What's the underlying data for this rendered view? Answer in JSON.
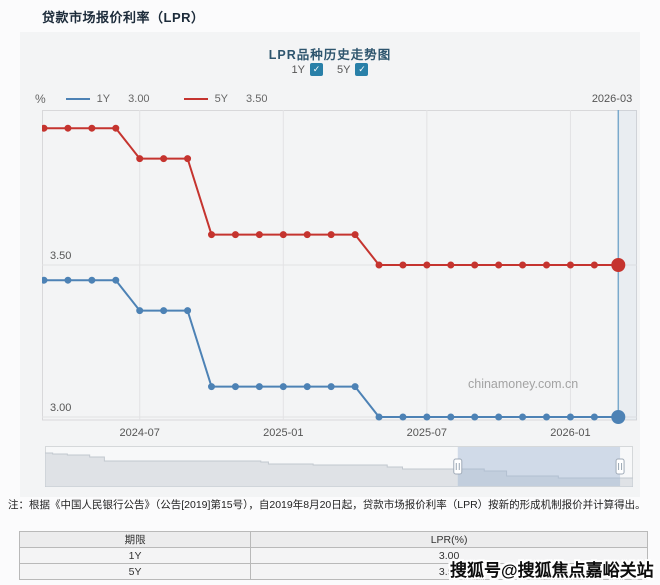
{
  "page_title": "贷款市场报价利率（LPR）",
  "chart": {
    "title": "LPR品种历史走势图",
    "checkboxes": [
      {
        "label": "1Y",
        "checked": true
      },
      {
        "label": "5Y",
        "checked": true
      }
    ],
    "legend": {
      "unit": "%",
      "items": [
        {
          "label": "1Y",
          "value": "3.00"
        },
        {
          "label": "5Y",
          "value": "3.50"
        }
      ]
    },
    "crosshair_label": "2026-03",
    "watermark": "chinamoney.com.cn"
  },
  "chart_data": {
    "type": "line",
    "x": [
      "2024-03",
      "2024-04",
      "2024-05",
      "2024-06",
      "2024-07",
      "2024-08",
      "2024-09",
      "2024-10",
      "2024-11",
      "2024-12",
      "2025-01",
      "2025-02",
      "2025-03",
      "2025-04",
      "2025-05",
      "2025-06",
      "2025-07",
      "2025-08",
      "2025-09",
      "2025-10",
      "2025-11",
      "2025-12",
      "2026-01",
      "2026-02",
      "2026-03"
    ],
    "series": [
      {
        "name": "1Y",
        "color": "#4d82b5",
        "values": [
          3.45,
          3.45,
          3.45,
          3.45,
          3.35,
          3.35,
          3.35,
          3.1,
          3.1,
          3.1,
          3.1,
          3.1,
          3.1,
          3.1,
          3.0,
          3.0,
          3.0,
          3.0,
          3.0,
          3.0,
          3.0,
          3.0,
          3.0,
          3.0,
          3.0
        ]
      },
      {
        "name": "5Y",
        "color": "#c5342f",
        "values": [
          3.95,
          3.95,
          3.95,
          3.95,
          3.85,
          3.85,
          3.85,
          3.6,
          3.6,
          3.6,
          3.6,
          3.6,
          3.6,
          3.6,
          3.5,
          3.5,
          3.5,
          3.5,
          3.5,
          3.5,
          3.5,
          3.5,
          3.5,
          3.5,
          3.5
        ]
      }
    ],
    "x_tick_labels": [
      "2024-07",
      "2025-01",
      "2025-07",
      "2026-01"
    ],
    "y_ticks": [
      3.5,
      3.0
    ],
    "ylim": [
      2.99,
      4.02
    ],
    "highlight_x": "2026-03",
    "grid": true,
    "legend_position": "top-left",
    "navigator": {
      "selection": [
        0.702,
        0.978
      ],
      "steps": [
        [
          0,
          4.25
        ],
        [
          0.013,
          4.2
        ],
        [
          0.038,
          4.15
        ],
        [
          0.076,
          4.05
        ],
        [
          0.101,
          3.85
        ],
        [
          0.367,
          3.8
        ],
        [
          0.38,
          3.7
        ],
        [
          0.456,
          3.65
        ],
        [
          0.582,
          3.55
        ],
        [
          0.608,
          3.45
        ],
        [
          0.747,
          3.35
        ],
        [
          0.785,
          3.1
        ],
        [
          0.873,
          3.0
        ],
        [
          1,
          3.0
        ]
      ]
    }
  },
  "colors": {
    "series_1y": "#4d82b5",
    "series_5y": "#c5342f",
    "checkbox": "#2980a8",
    "crosshair": "#7aa9cc",
    "gridline": "#e2e2e4",
    "plot_border": "#d8d8da"
  },
  "note": "注：根据《中国人民银行公告》（公告[2019]第15号），自2019年8月20日起，贷款市场报价利率（LPR）按新的形成机制报价并计算得出。",
  "table": {
    "headers": [
      "期限",
      "LPR(%)"
    ],
    "rows": [
      [
        "1Y",
        "3.00"
      ],
      [
        "5Y",
        "3.50"
      ]
    ]
  },
  "overlay_watermark": "搜狐号@搜狐焦点嘉峪关站"
}
